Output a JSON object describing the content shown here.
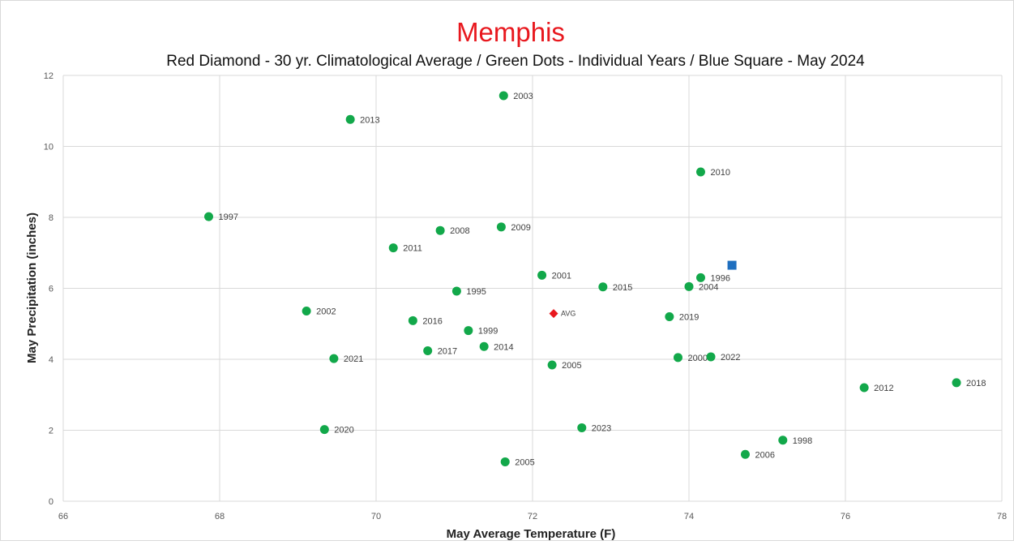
{
  "chart_data": {
    "type": "scatter",
    "title": "Memphis",
    "subtitle": "Red Diamond - 30 yr. Climatological Average / Green Dots - Individual Years / Blue Square - May 2024",
    "xlabel": "May Average Temperature  (F)",
    "ylabel": "May Precipitation  (inches)",
    "xlim": [
      66,
      78
    ],
    "ylim": [
      0,
      12
    ],
    "x_ticks": [
      66,
      68,
      70,
      72,
      74,
      76,
      78
    ],
    "y_ticks": [
      0,
      2,
      4,
      6,
      8,
      10,
      12
    ],
    "grid": true,
    "colors": {
      "title": "#e8181e",
      "years": "#12a84a",
      "average": "#e8181e",
      "current": "#1f6fbf",
      "grid": "#d9d9d9"
    },
    "points": [
      {
        "label": "1997",
        "x": 67.86,
        "y": 8.02
      },
      {
        "label": "2013",
        "x": 69.67,
        "y": 10.76
      },
      {
        "label": "2003",
        "x": 71.63,
        "y": 11.43
      },
      {
        "label": "2010",
        "x": 74.15,
        "y": 9.28
      },
      {
        "label": "2008",
        "x": 70.82,
        "y": 7.63
      },
      {
        "label": "2009",
        "x": 71.6,
        "y": 7.73
      },
      {
        "label": "2011",
        "x": 70.22,
        "y": 7.14
      },
      {
        "label": "2001",
        "x": 72.12,
        "y": 6.37
      },
      {
        "label": "1995",
        "x": 71.03,
        "y": 5.92
      },
      {
        "label": "2015",
        "x": 72.9,
        "y": 6.04
      },
      {
        "label": "2004",
        "x": 74.0,
        "y": 6.05
      },
      {
        "label": "1996",
        "x": 74.15,
        "y": 6.3
      },
      {
        "label": "2002",
        "x": 69.11,
        "y": 5.36
      },
      {
        "label": "2016",
        "x": 70.47,
        "y": 5.09
      },
      {
        "label": "1999",
        "x": 71.18,
        "y": 4.81
      },
      {
        "label": "2019",
        "x": 73.75,
        "y": 5.2
      },
      {
        "label": "2017",
        "x": 70.66,
        "y": 4.24
      },
      {
        "label": "2014",
        "x": 71.38,
        "y": 4.36
      },
      {
        "label": "2021",
        "x": 69.46,
        "y": 4.02
      },
      {
        "label": "2005",
        "x": 72.25,
        "y": 3.84
      },
      {
        "label": "2000",
        "x": 73.86,
        "y": 4.05
      },
      {
        "label": "2022",
        "x": 74.28,
        "y": 4.07
      },
      {
        "label": "2012",
        "x": 76.24,
        "y": 3.2
      },
      {
        "label": "2018",
        "x": 77.42,
        "y": 3.34
      },
      {
        "label": "2020",
        "x": 69.34,
        "y": 2.02
      },
      {
        "label": "2023",
        "x": 72.63,
        "y": 2.07
      },
      {
        "label": "1998",
        "x": 75.2,
        "y": 1.72
      },
      {
        "label": "2006",
        "x": 74.72,
        "y": 1.32
      },
      {
        "label": "2005",
        "x": 71.65,
        "y": 1.11
      }
    ],
    "average": {
      "label": "AVG",
      "x": 72.27,
      "y": 5.29
    },
    "current": {
      "x": 74.55,
      "y": 6.65
    }
  }
}
